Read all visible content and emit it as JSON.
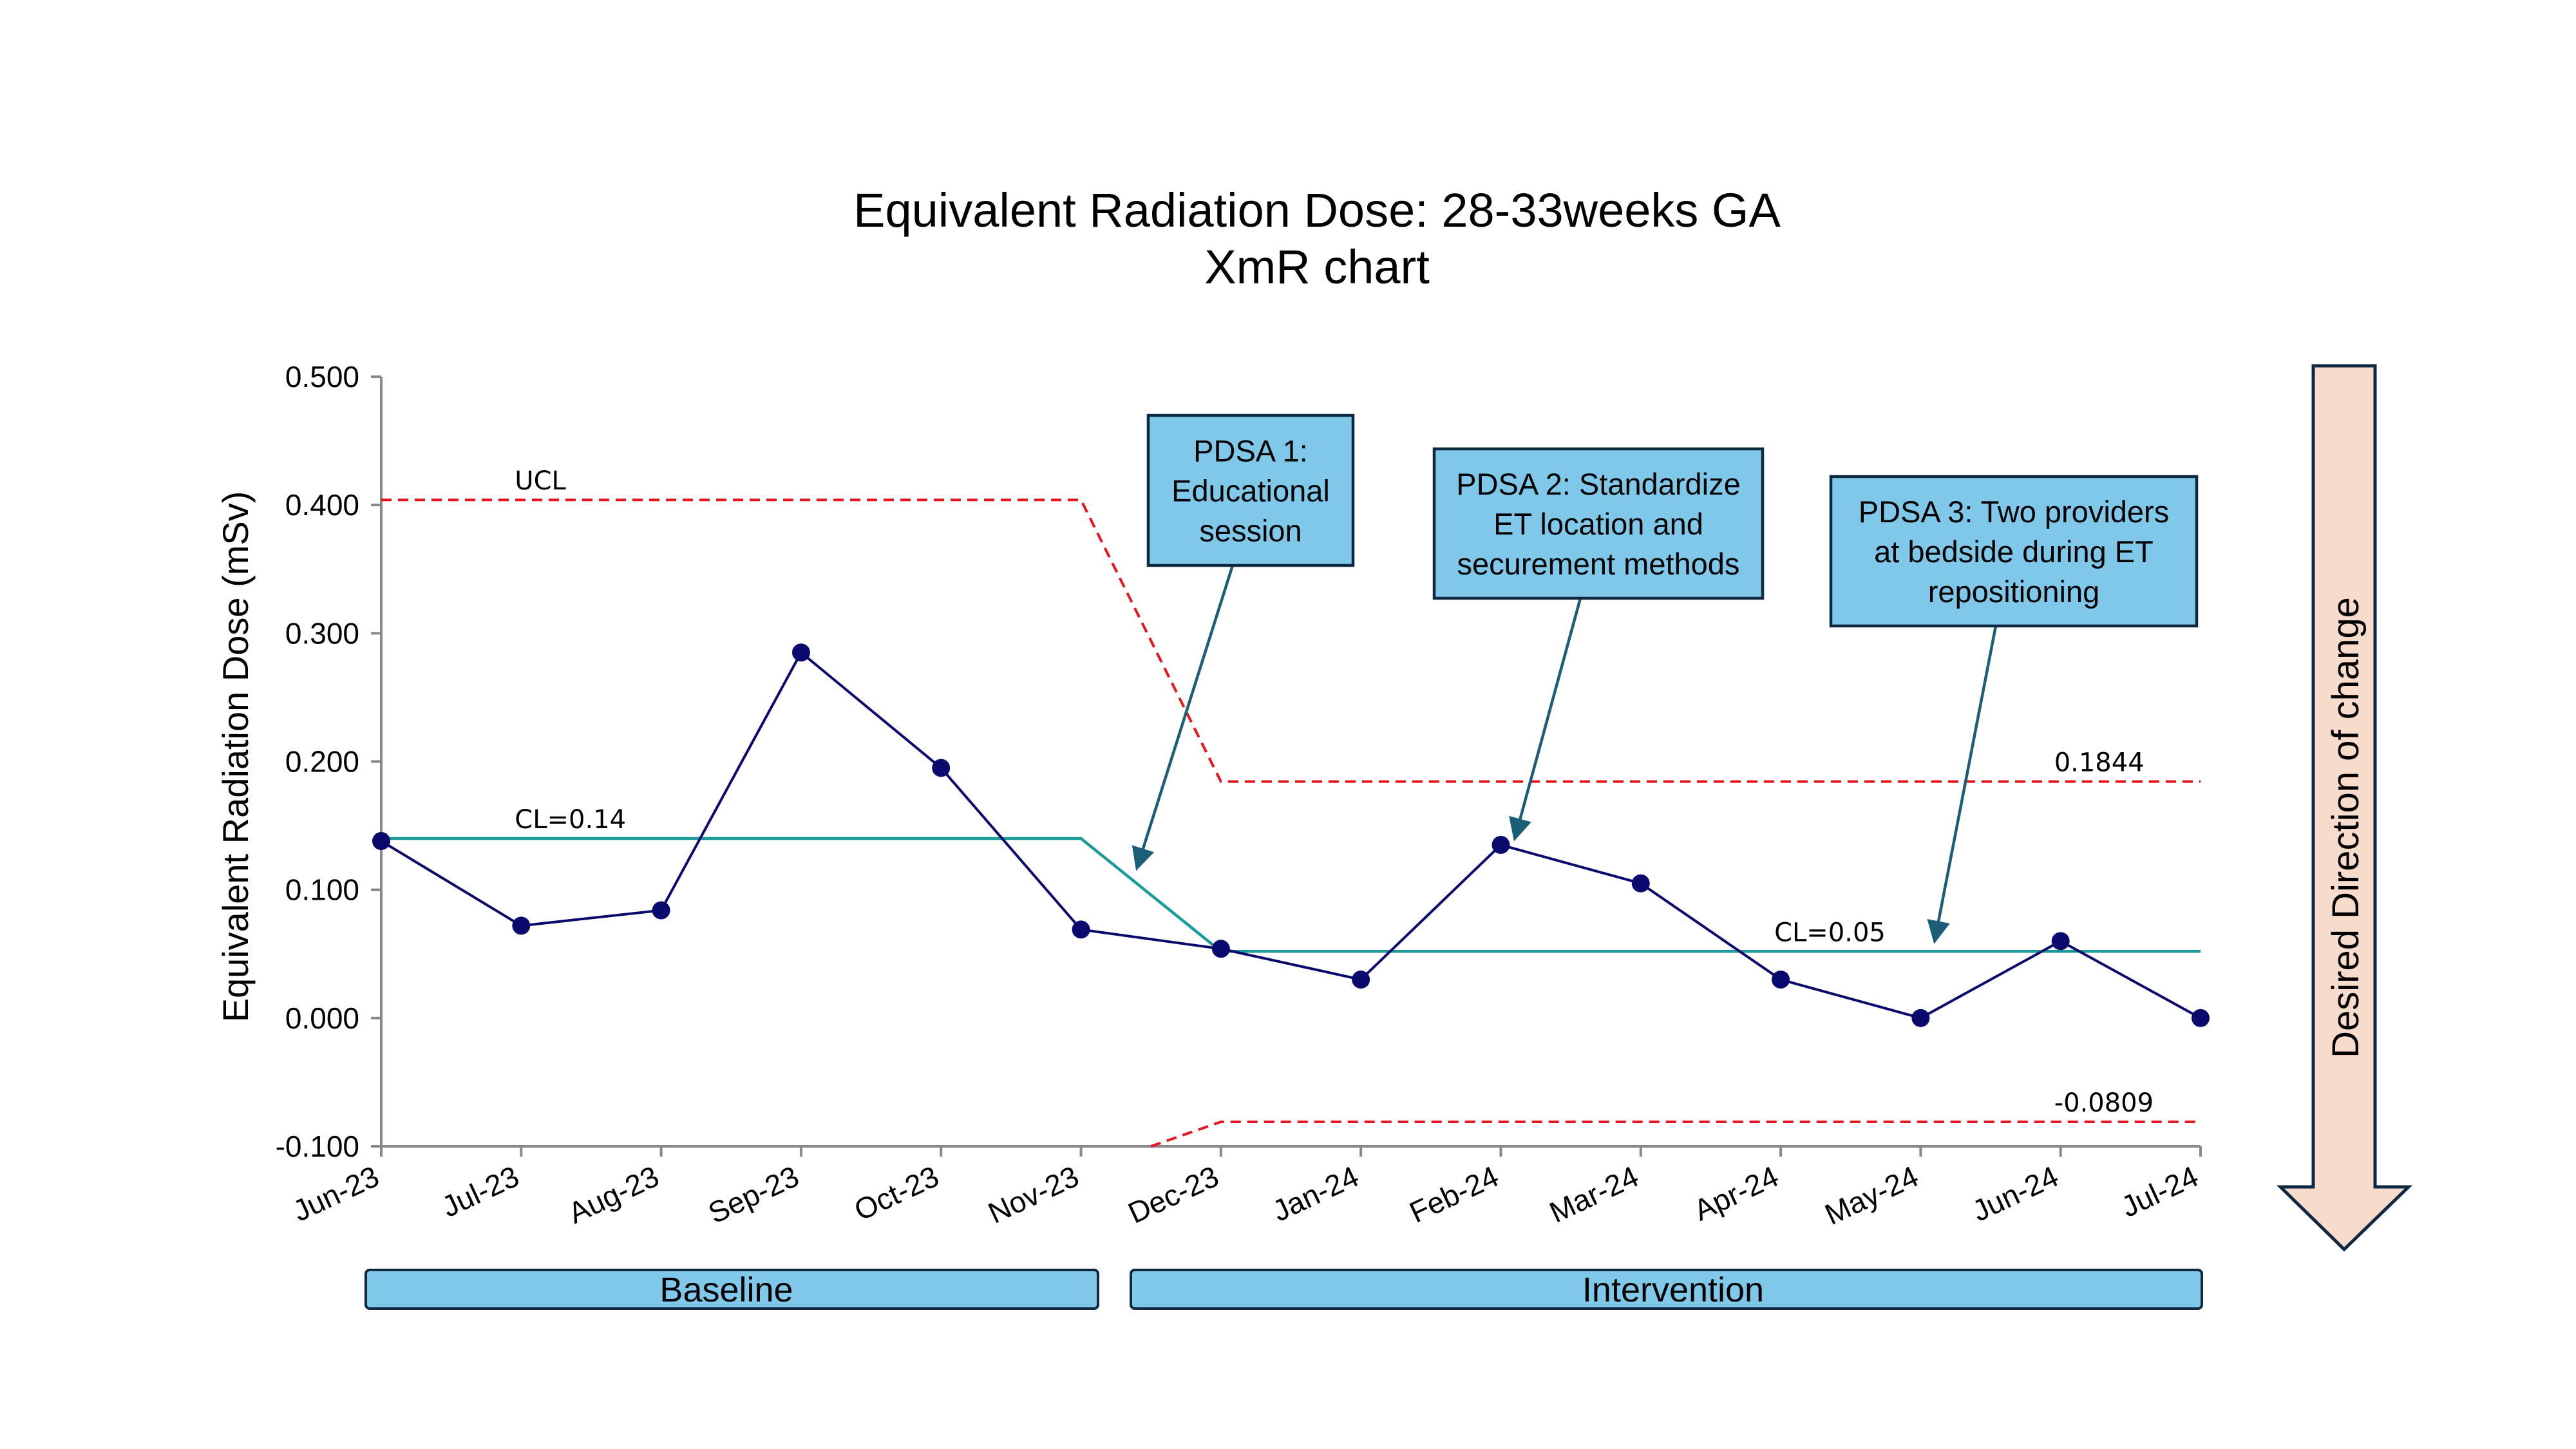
{
  "chart_data": {
    "type": "line",
    "title": "Equivalent Radiation Dose: 28-33weeks GA",
    "subtitle": "XmR chart",
    "ylabel": "Equivalent Radiation Dose (mSv)",
    "xlabel": "",
    "ylim": [
      -0.1,
      0.5
    ],
    "yticks": [
      "-0.100",
      "0.000",
      "0.100",
      "0.200",
      "0.300",
      "0.400",
      "0.500"
    ],
    "yticks_values": [
      -0.1,
      0.0,
      0.1,
      0.2,
      0.3,
      0.4,
      0.5
    ],
    "categories": [
      "Jun-23",
      "Jul-23",
      "Aug-23",
      "Sep-23",
      "Oct-23",
      "Nov-23",
      "Dec-23",
      "Jan-24",
      "Feb-24",
      "Mar-24",
      "Apr-24",
      "May-24",
      "Jun-24",
      "Jul-24"
    ],
    "series": [
      {
        "values": [
          0.138,
          0.072,
          0.084,
          0.285,
          0.195,
          0.069,
          0.054,
          0.03,
          0.135,
          0.105,
          0.03,
          0.0,
          0.06,
          0.0
        ],
        "color": "#0a0a6e"
      }
    ],
    "center_line": {
      "color": "#1a9a9a",
      "points": [
        [
          0,
          0.14
        ],
        [
          5,
          0.14
        ],
        [
          6,
          0.052
        ],
        [
          13,
          0.052
        ]
      ],
      "labels": [
        {
          "text": "CL=0.14",
          "at": [
            1,
            0.14
          ]
        },
        {
          "text": "CL=0.05",
          "at": [
            10,
            0.052
          ]
        }
      ]
    },
    "ucl": {
      "color": "#e8141e",
      "points": [
        [
          0,
          0.404
        ],
        [
          5,
          0.404
        ],
        [
          6,
          0.1844
        ],
        [
          13,
          0.1844
        ]
      ],
      "labels": [
        {
          "text": "UCL",
          "at": [
            1,
            0.404
          ]
        },
        {
          "text": "0.1844",
          "at": [
            12,
            0.1844
          ]
        }
      ]
    },
    "lcl": {
      "color": "#e8141e",
      "points": [
        [
          5.5,
          -0.1
        ],
        [
          6,
          -0.0809
        ],
        [
          13,
          -0.0809
        ]
      ],
      "labels": [
        {
          "text": "-0.0809",
          "at": [
            12,
            -0.0809
          ]
        }
      ]
    },
    "annotations": [
      {
        "lines": [
          "PDSA 1:",
          "Educational",
          "session"
        ],
        "arrow_to": [
          5.4,
          0.117
        ]
      },
      {
        "lines": [
          "PDSA 2: Standardize",
          "ET location and",
          "securement methods"
        ],
        "arrow_to": [
          8.1,
          0.14
        ]
      },
      {
        "lines": [
          "PDSA 3: Two providers",
          "at bedside during ET",
          "repositioning"
        ],
        "arrow_to": [
          11.1,
          0.06
        ]
      }
    ],
    "phases": [
      {
        "label": "Baseline"
      },
      {
        "label": "Intervention"
      }
    ],
    "direction_label": "Desired Direction of change",
    "colors": {
      "box_fill": "#7fc8ea",
      "box_border": "#0d2840",
      "arrow": "#1c5e78",
      "direction_fill": "#f8dccb"
    }
  }
}
